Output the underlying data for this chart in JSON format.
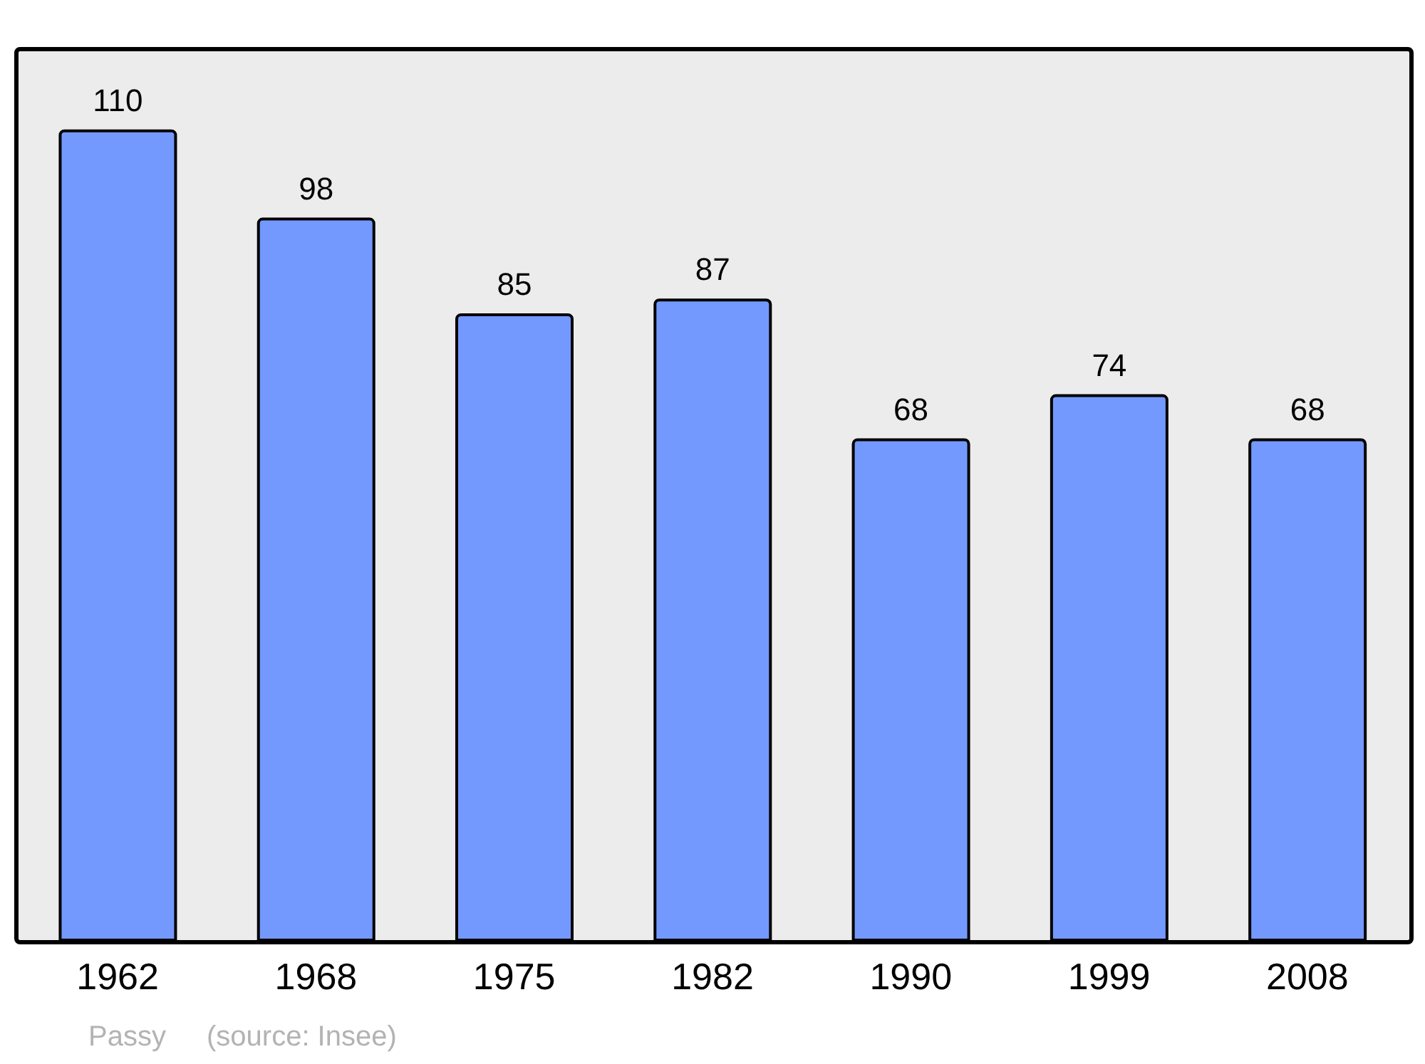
{
  "chart_data": {
    "type": "bar",
    "categories": [
      "1962",
      "1968",
      "1975",
      "1982",
      "1990",
      "1999",
      "2008"
    ],
    "values": [
      110,
      98,
      85,
      87,
      68,
      74,
      68
    ],
    "color": "#7399ff",
    "data_labels": true,
    "annotations": [
      "Passy",
      "(source: Insee)"
    ]
  }
}
